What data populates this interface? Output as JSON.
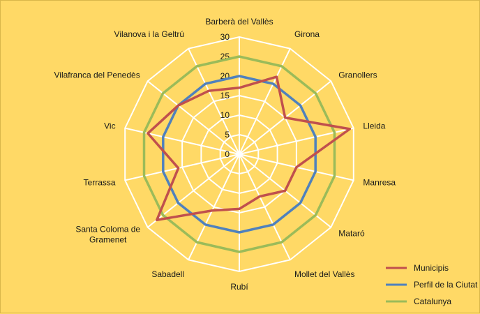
{
  "chart_data": {
    "type": "radar",
    "categories": [
      "Barberà del Vallès",
      "Girona",
      "Granollers",
      "Lleida",
      "Manresa",
      "Mataró",
      "Mollet del Vallès",
      "Rubí",
      "Sabadell",
      "Santa Coloma de Gramenet",
      "Terrassa",
      "Vic",
      "Vilafranca del Penedès",
      "Vilanova i la Geltrú"
    ],
    "rlim": [
      0,
      30
    ],
    "ticks": [
      0,
      5,
      10,
      15,
      20,
      25,
      30
    ],
    "grid": true,
    "legend": "right",
    "series": [
      {
        "name": "Municipis",
        "color": "#c0504d",
        "values": [
          17,
          22,
          15,
          29,
          15,
          15,
          12,
          14,
          16,
          27,
          16,
          24,
          20,
          18
        ]
      },
      {
        "name": "Perfil de la Ciutat",
        "color": "#4f81bd",
        "values": [
          20,
          20,
          20,
          20,
          20,
          20,
          20,
          20,
          20,
          20,
          20,
          20,
          20,
          20
        ]
      },
      {
        "name": "Catalunya",
        "color": "#9bbb59",
        "values": [
          25,
          25,
          25,
          25,
          25,
          25,
          25,
          25,
          25,
          25,
          25,
          25,
          25,
          25
        ]
      }
    ]
  }
}
